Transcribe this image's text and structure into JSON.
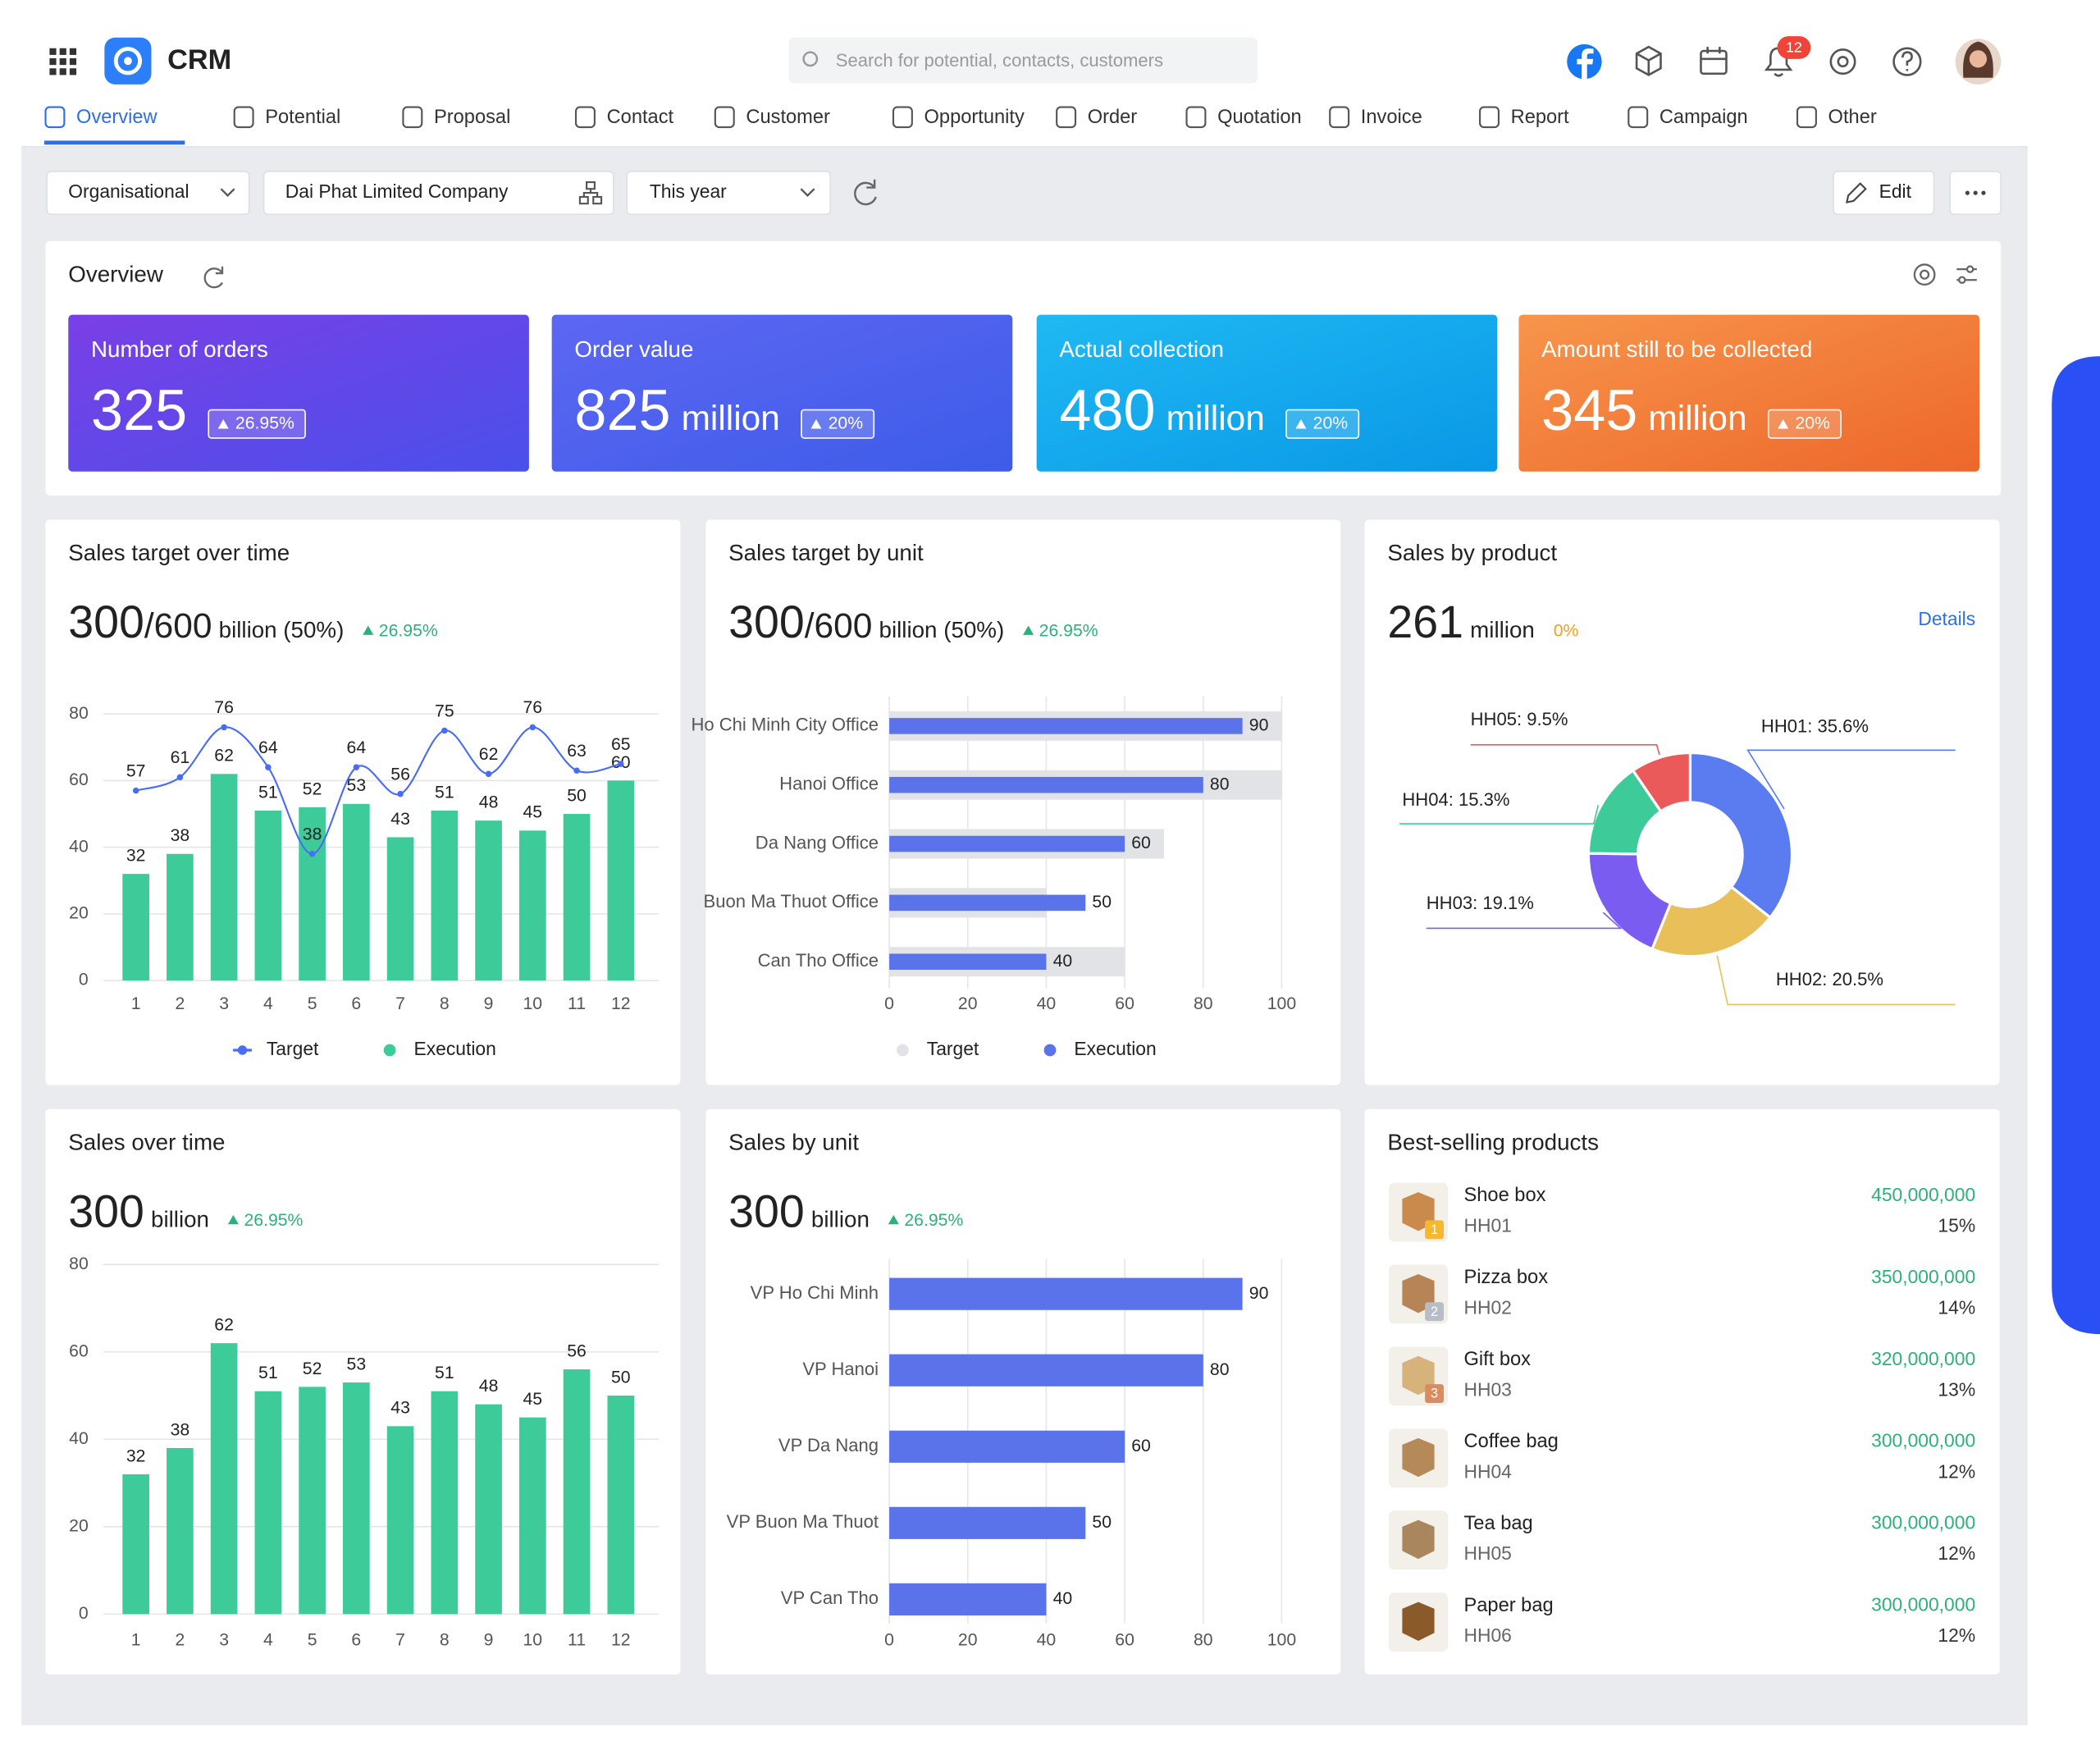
{
  "header": {
    "app_name": "CRM",
    "search_placeholder": "Search for potential, contacts, customers",
    "notification_count": 12
  },
  "tabs": [
    "Overview",
    "Potential",
    "Proposal",
    "Contact",
    "Customer",
    "Opportunity",
    "Order",
    "Quotation",
    "Invoice",
    "Report",
    "Campaign",
    "Other"
  ],
  "filters": {
    "scope": "Organisational",
    "company": "Dai Phat Limited Company",
    "period": "This year",
    "edit": "Edit"
  },
  "overview": {
    "title": "Overview",
    "cards": [
      {
        "label": "Number of orders",
        "value": 325,
        "change": "26.95%"
      },
      {
        "label": "Order value",
        "value": 825,
        "unit": "million",
        "change": "20%"
      },
      {
        "label": "Actual collection",
        "value": 480,
        "unit": "million",
        "change": "20%"
      },
      {
        "label": "Amount still to be collected",
        "value": 345,
        "unit": "million",
        "change": "20%"
      }
    ]
  },
  "chart_data": [
    {
      "type": "combo",
      "title": "Sales target over time",
      "headline": {
        "value": 300,
        "target": "/600",
        "unit": "billion (50%)",
        "change": "26.95%",
        "trend": "up"
      },
      "x": [
        1,
        2,
        3,
        4,
        5,
        6,
        7,
        8,
        9,
        10,
        11,
        12
      ],
      "xlim": [
        0.5,
        12.5
      ],
      "series": [
        {
          "name": "Target",
          "kind": "line",
          "color": "#4a6cf3",
          "values": [
            57,
            61,
            76,
            64,
            38,
            64,
            56,
            75,
            62,
            76,
            63,
            65
          ]
        },
        {
          "name": "Execution",
          "kind": "bar",
          "color": "#3ecb9a",
          "values": [
            32,
            38,
            62,
            51,
            52,
            53,
            43,
            51,
            48,
            45,
            50,
            60
          ]
        }
      ],
      "ylim": [
        0,
        80
      ],
      "yticks": [
        0,
        20,
        40,
        60,
        80
      ],
      "grid": true,
      "legend": true,
      "data_labels": true
    },
    {
      "type": "hbar",
      "title": "Sales target by unit",
      "headline": {
        "value": 300,
        "target": "/600",
        "unit": "billion (50%)",
        "change": "26.95%",
        "trend": "up"
      },
      "categories": [
        "Ho Chi Minh City Office",
        "Hanoi Office",
        "Da Nang Office",
        "Buon Ma Thuot Office",
        "Can Tho Office"
      ],
      "series": [
        {
          "name": "Target",
          "color": "#e2e3e7",
          "values": [
            100,
            100,
            70,
            40,
            60
          ]
        },
        {
          "name": "Execution",
          "color": "#5b73ea",
          "values": [
            90,
            80,
            60,
            50,
            40
          ]
        }
      ],
      "xlim": [
        0,
        100
      ],
      "xticks": [
        0,
        20,
        40,
        60,
        80,
        100
      ],
      "grid": true,
      "legend": true,
      "data_labels": true
    },
    {
      "type": "donut",
      "title": "Sales by product",
      "headline": {
        "value": 261,
        "unit": "million",
        "change": "0%",
        "trend": "flat"
      },
      "link": "Details",
      "categories": [
        "HH01",
        "HH02",
        "HH03",
        "HH04",
        "HH05"
      ],
      "values": [
        35.6,
        20.5,
        19.1,
        15.3,
        9.5
      ],
      "value_labels": [
        "HH01: 35.6%",
        "HH02: 20.5%",
        "HH03: 19.1%",
        "HH04: 15.3%",
        "HH05: 9.5%"
      ],
      "colors": [
        "#5b7cf0",
        "#e8bf58",
        "#7b5cf0",
        "#3ecb9a",
        "#ea5a5a"
      ]
    },
    {
      "type": "bar",
      "title": "Sales over time",
      "headline": {
        "value": 300,
        "unit": "billion",
        "change": "26.95%",
        "trend": "up"
      },
      "x": [
        1,
        2,
        3,
        4,
        5,
        6,
        7,
        8,
        9,
        10,
        11,
        12
      ],
      "xlim": [
        0.5,
        12.5
      ],
      "values": [
        32,
        38,
        62,
        51,
        52,
        53,
        43,
        51,
        48,
        45,
        56,
        50
      ],
      "color": "#3ecb9a",
      "ylim": [
        0,
        80
      ],
      "yticks": [
        0,
        20,
        40,
        60,
        80
      ],
      "grid": true,
      "data_labels": true
    },
    {
      "type": "hbar",
      "title": "Sales by unit",
      "headline": {
        "value": 300,
        "unit": "billion",
        "change": "26.95%",
        "trend": "up"
      },
      "categories": [
        "VP Ho Chi Minh",
        "VP Hanoi",
        "VP Da Nang",
        "VP Buon Ma Thuot",
        "VP Can Tho"
      ],
      "values": [
        90,
        80,
        60,
        50,
        40
      ],
      "color": "#5b73ea",
      "xlim": [
        0,
        100
      ],
      "xticks": [
        0,
        20,
        40,
        60,
        80,
        100
      ],
      "grid": true,
      "data_labels": true
    }
  ],
  "best_selling": {
    "title": "Best-selling products",
    "rows": [
      {
        "name": "Shoe box",
        "code": "HH01",
        "amount": "450,000,000",
        "share": "15%",
        "rank": 1
      },
      {
        "name": "Pizza box",
        "code": "HH02",
        "amount": "350,000,000",
        "share": "14%",
        "rank": 2
      },
      {
        "name": "Gift box",
        "code": "HH03",
        "amount": "320,000,000",
        "share": "13%",
        "rank": 3
      },
      {
        "name": "Coffee bag",
        "code": "HH04",
        "amount": "300,000,000",
        "share": "12%"
      },
      {
        "name": "Tea bag",
        "code": "HH05",
        "amount": "300,000,000",
        "share": "12%"
      },
      {
        "name": "Paper bag",
        "code": "HH06",
        "amount": "300,000,000",
        "share": "12%"
      }
    ]
  }
}
